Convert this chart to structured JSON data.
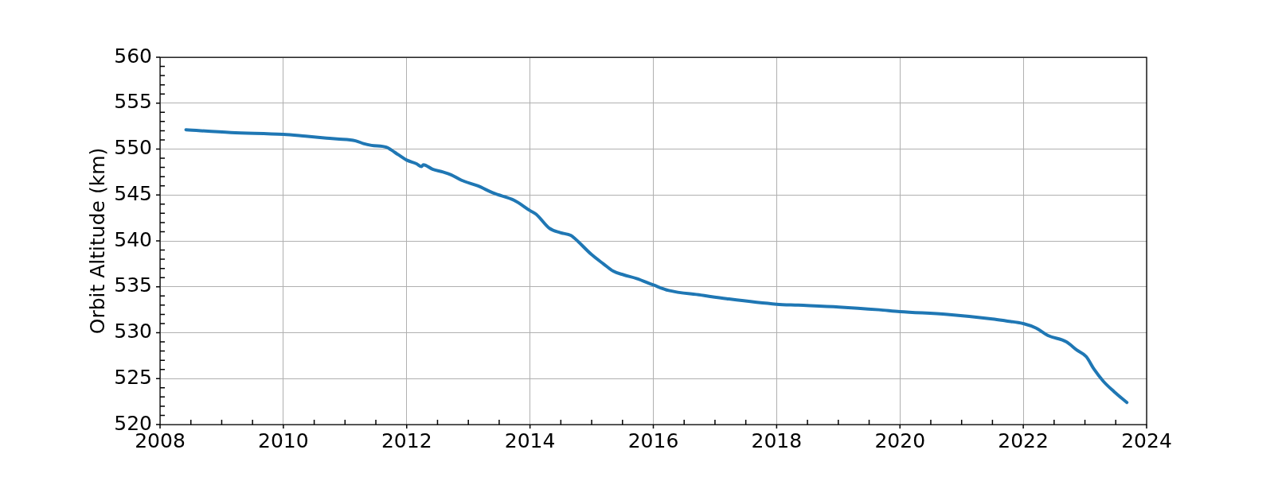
{
  "chart_data": {
    "type": "line",
    "ylabel": "Orbit Altitude (km)",
    "x": [
      2008.42,
      2009.15,
      2010.0,
      2010.36,
      2010.7,
      2010.87,
      2011.17,
      2011.3,
      2011.43,
      2011.67,
      2011.75,
      2011.86,
      2012.0,
      2012.16,
      2012.24,
      2012.27,
      2012.42,
      2012.59,
      2012.72,
      2012.89,
      2013.15,
      2013.41,
      2013.75,
      2014.0,
      2014.1,
      2014.31,
      2014.49,
      2014.66,
      2014.72,
      2015.0,
      2015.19,
      2015.35,
      2015.52,
      2015.73,
      2016.0,
      2016.25,
      2016.77,
      2017.19,
      2018.0,
      2018.35,
      2019.01,
      2019.66,
      2020.0,
      2020.77,
      2021.5,
      2021.71,
      2022.0,
      2022.21,
      2022.4,
      2022.7,
      2022.87,
      2023.02,
      2023.15,
      2023.3,
      2023.47,
      2023.68
    ],
    "series": [
      {
        "color": "#1f77b4",
        "values": [
          552.1,
          551.8,
          551.6,
          551.4,
          551.2,
          551.1,
          550.9,
          550.6,
          550.4,
          550.2,
          549.9,
          549.4,
          548.8,
          548.4,
          548.1,
          548.3,
          547.8,
          547.5,
          547.2,
          546.6,
          546.0,
          545.2,
          544.4,
          543.3,
          542.9,
          541.4,
          540.9,
          540.6,
          540.3,
          538.5,
          537.5,
          536.7,
          536.3,
          535.9,
          535.2,
          534.6,
          534.1,
          533.7,
          533.1,
          533.0,
          532.8,
          532.5,
          532.3,
          532.0,
          531.5,
          531.3,
          531.0,
          530.5,
          529.7,
          529.0,
          528.1,
          527.4,
          526.0,
          524.7,
          523.6,
          522.4
        ]
      }
    ],
    "xlim": [
      2008,
      2024
    ],
    "ylim": [
      520,
      560
    ],
    "xticks": [
      2008,
      {
        "value": 2008.5,
        "label": null
      },
      {
        "value": 2009,
        "label": null
      },
      {
        "value": 2009.5,
        "label": null
      },
      2010,
      {
        "value": 2010.5,
        "label": null
      },
      {
        "value": 2011,
        "label": null
      },
      {
        "value": 2011.5,
        "label": null
      },
      2012,
      {
        "value": 2012.5,
        "label": null
      },
      {
        "value": 2013,
        "label": null
      },
      {
        "value": 2013.5,
        "label": null
      },
      2014,
      {
        "value": 2014.5,
        "label": null
      },
      {
        "value": 2015,
        "label": null
      },
      {
        "value": 2015.5,
        "label": null
      },
      2016,
      {
        "value": 2016.5,
        "label": null
      },
      {
        "value": 2017,
        "label": null
      },
      {
        "value": 2017.5,
        "label": null
      },
      2018,
      {
        "value": 2018.5,
        "label": null
      },
      {
        "value": 2019,
        "label": null
      },
      {
        "value": 2019.5,
        "label": null
      },
      2020,
      {
        "value": 2020.5,
        "label": null
      },
      {
        "value": 2021,
        "label": null
      },
      {
        "value": 2021.5,
        "label": null
      },
      2022,
      {
        "value": 2022.5,
        "label": null
      },
      {
        "value": 2023,
        "label": null
      },
      {
        "value": 2023.5,
        "label": null
      },
      2024
    ],
    "yticks": [
      520,
      {
        "value": 521,
        "label": null
      },
      {
        "value": 522,
        "label": null
      },
      {
        "value": 523,
        "label": null
      },
      {
        "value": 524,
        "label": null
      },
      525,
      {
        "value": 526,
        "label": null
      },
      {
        "value": 527,
        "label": null
      },
      {
        "value": 528,
        "label": null
      },
      {
        "value": 529,
        "label": null
      },
      530,
      {
        "value": 531,
        "label": null
      },
      {
        "value": 532,
        "label": null
      },
      {
        "value": 533,
        "label": null
      },
      {
        "value": 534,
        "label": null
      },
      535,
      {
        "value": 536,
        "label": null
      },
      {
        "value": 537,
        "label": null
      },
      {
        "value": 538,
        "label": null
      },
      {
        "value": 539,
        "label": null
      },
      540,
      {
        "value": 541,
        "label": null
      },
      {
        "value": 542,
        "label": null
      },
      {
        "value": 543,
        "label": null
      },
      {
        "value": 544,
        "label": null
      },
      545,
      {
        "value": 546,
        "label": null
      },
      {
        "value": 547,
        "label": null
      },
      {
        "value": 548,
        "label": null
      },
      {
        "value": 549,
        "label": null
      },
      550,
      {
        "value": 551,
        "label": null
      },
      {
        "value": 552,
        "label": null
      },
      {
        "value": 553,
        "label": null
      },
      {
        "value": 554,
        "label": null
      },
      555,
      {
        "value": 556,
        "label": null
      },
      {
        "value": 557,
        "label": null
      },
      {
        "value": 558,
        "label": null
      },
      {
        "value": 559,
        "label": null
      },
      560
    ],
    "grid": true
  }
}
